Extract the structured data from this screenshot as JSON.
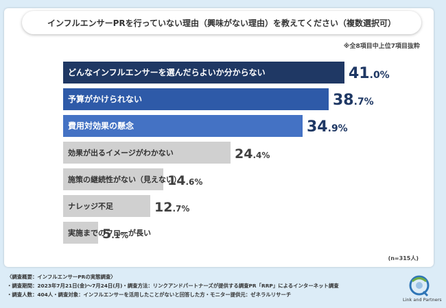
{
  "title": "インフルエンサーPRを行っていない理由（興味がない理由）を教えてください（複数選択可）",
  "note": "※全8項目中上位7項目抜粋",
  "sample_size": "(n=315人)",
  "footer": {
    "line1": "〈調査概要：インフルエンサーPRの実態調査〉",
    "line2": "・調査期間：2023年7月21日(金)〜7月24日(月)・調査方法：リンクアンドパートナーズが提供する調査PR「RRP」によるインターネット調査",
    "line3": "・調査人数：404人・調査対象：インフルエンサーを活用したことがないと回答した方・モニター提供元：ゼネラルリサーチ"
  },
  "logo": {
    "icon": "linkandpartners-logo-icon",
    "text": "Link and Partners"
  },
  "colors": {
    "top1": "#1f3864",
    "top2": "#2e5aa8",
    "top3": "#4472c4",
    "rest": "#d0d0d0",
    "top_value": "#1f3864",
    "rest_value": "#404040"
  },
  "chart_data": {
    "type": "bar",
    "orientation": "horizontal",
    "categories": [
      "どんなインフルエンサーを選んだらよいか分からない",
      "予算がかけられない",
      "費用対効果の懸念",
      "効果が出るイメージがわかない",
      "施策の継続性がない（見えない）",
      "ナレッジ不足",
      "実施までのフローが長い"
    ],
    "values": [
      41.0,
      38.7,
      34.9,
      24.4,
      14.6,
      12.7,
      5.1
    ],
    "value_labels": [
      {
        "int": "41",
        "dec": ".0%"
      },
      {
        "int": "38",
        "dec": ".7%"
      },
      {
        "int": "34",
        "dec": ".9%"
      },
      {
        "int": "24",
        "dec": ".4%"
      },
      {
        "int": "14",
        "dec": ".6%"
      },
      {
        "int": "12",
        "dec": ".7%"
      },
      {
        "int": "5",
        "dec": ".1%"
      }
    ],
    "unit": "%",
    "xlim": [
      0,
      50
    ],
    "grid": false,
    "legend": "none"
  }
}
